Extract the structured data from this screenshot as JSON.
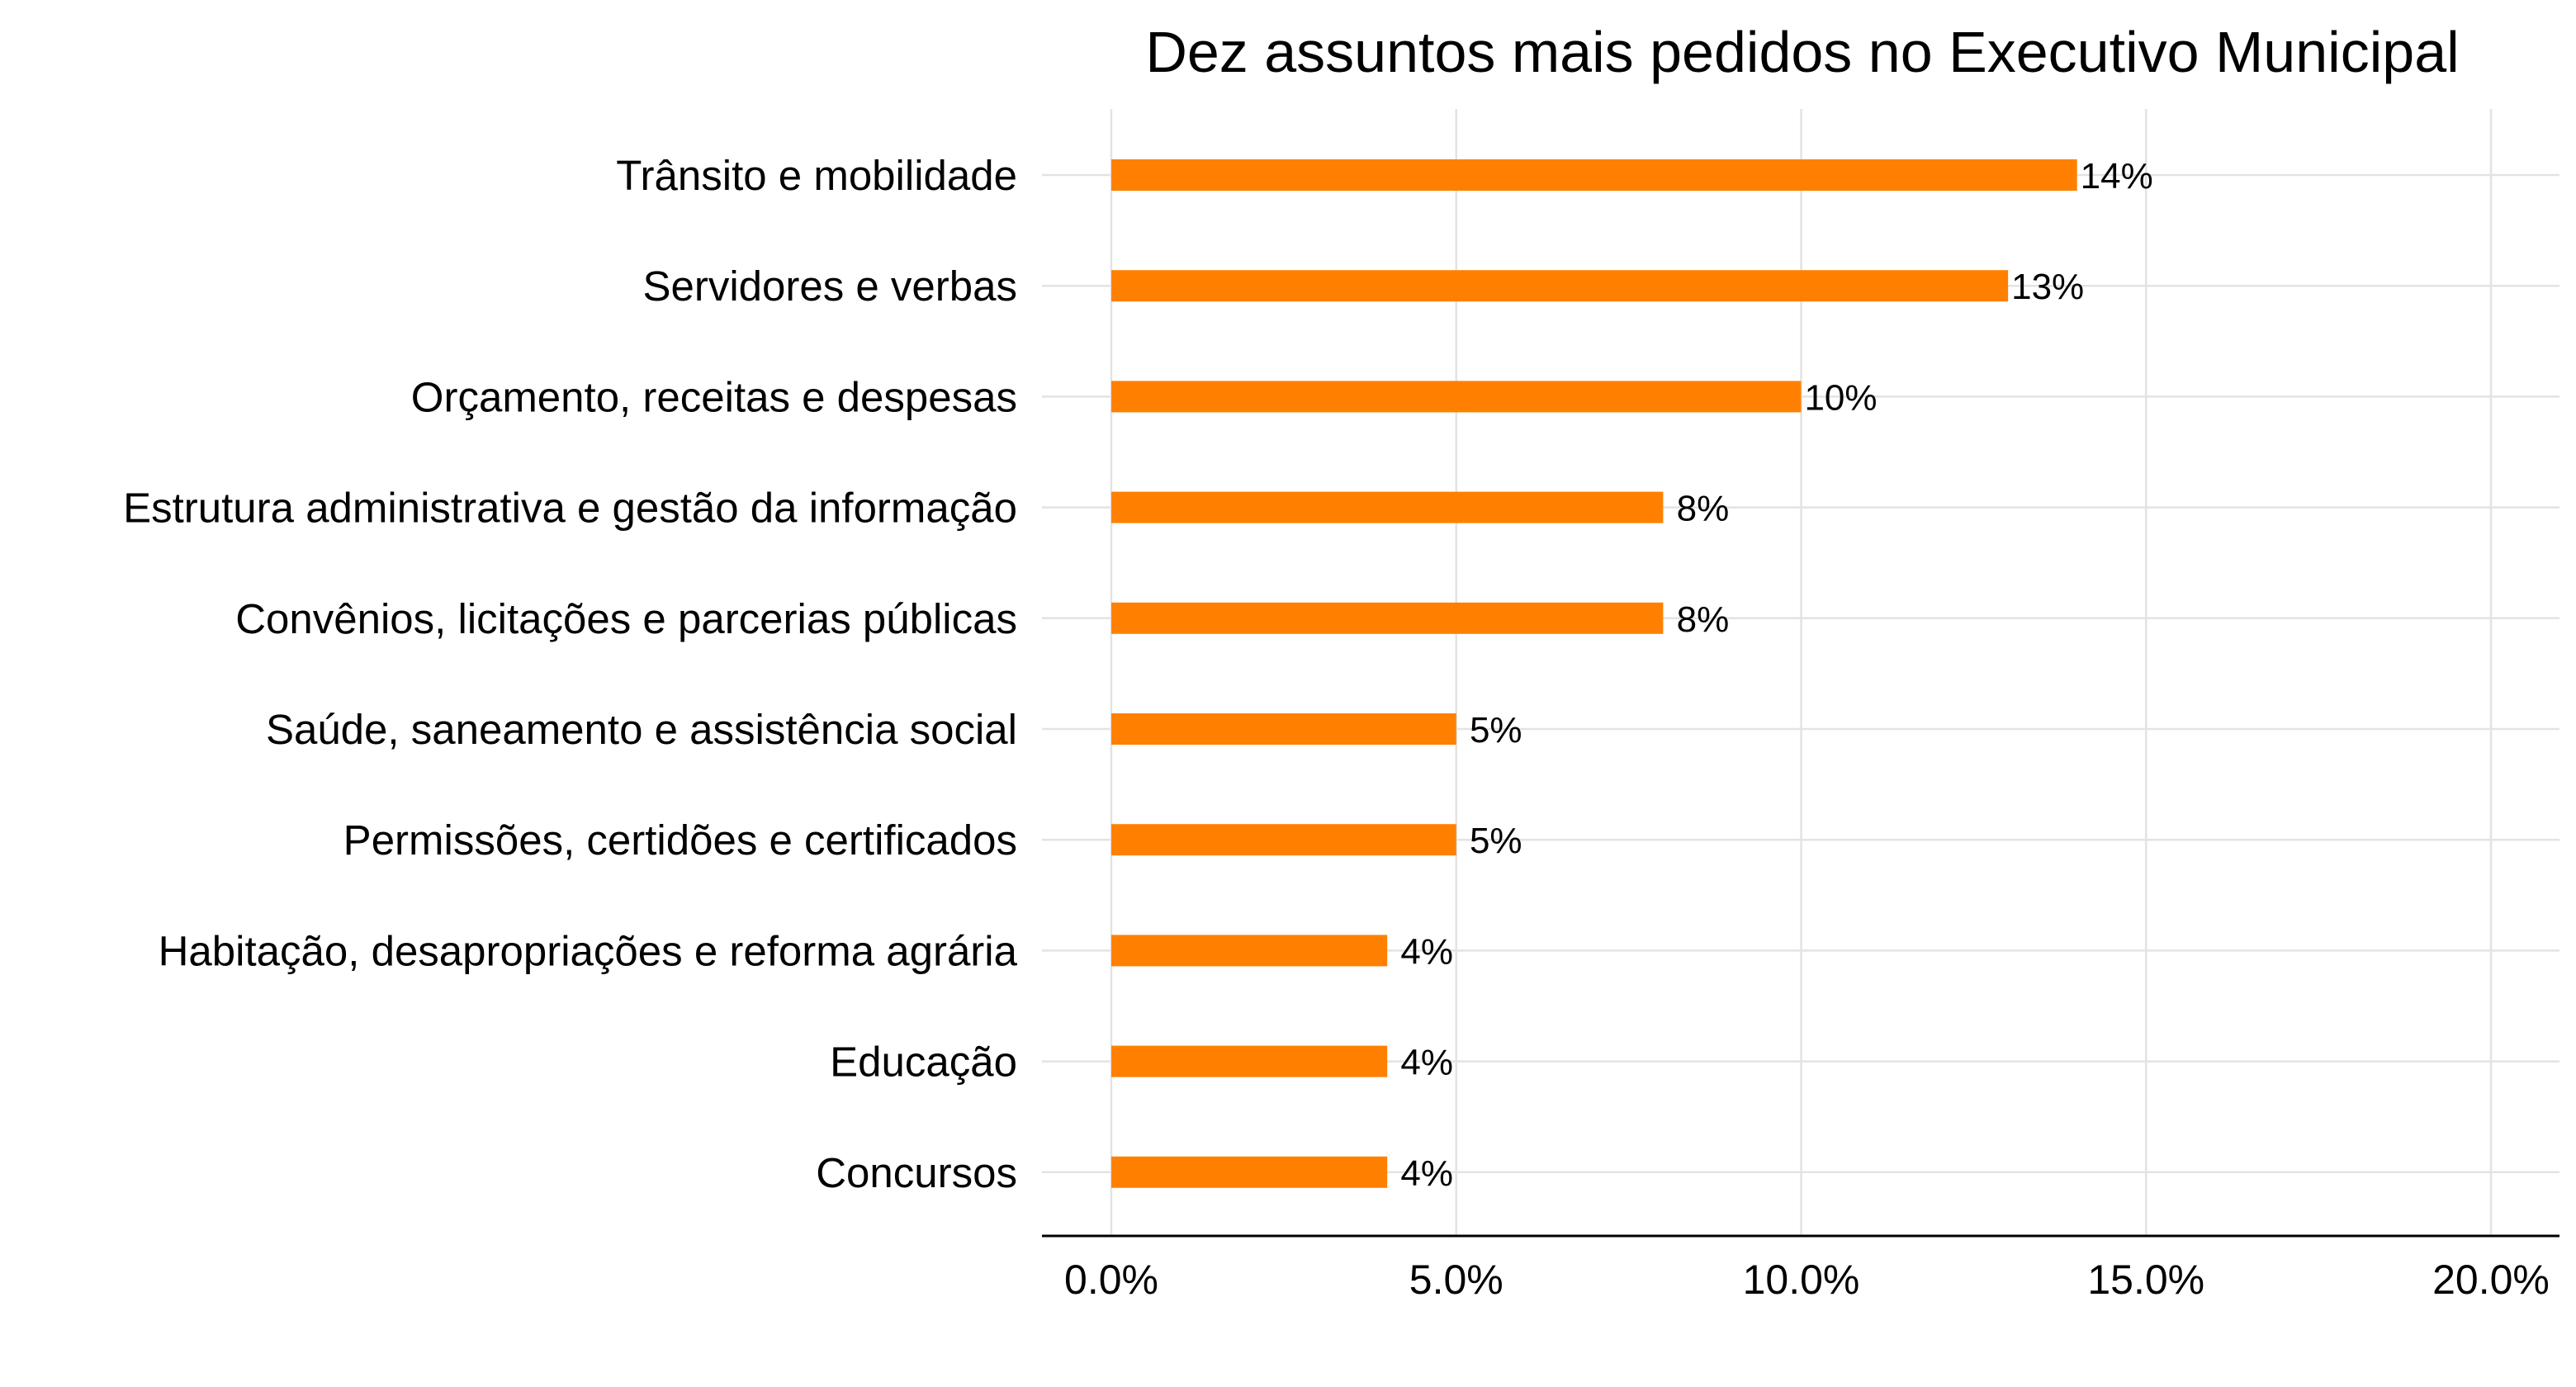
{
  "chart_data": {
    "type": "bar",
    "orientation": "horizontal",
    "title": "Dez assuntos mais pedidos no Executivo Municipal",
    "xlabel": "",
    "ylabel": "",
    "categories": [
      "Trânsito e mobilidade",
      "Servidores e verbas",
      "Orçamento, receitas e despesas",
      "Estrutura administrativa e gestão da informação",
      "Convênios, licitações e parcerias públicas",
      "Saúde, saneamento e assistência social",
      "Permissões, certidões e certificados",
      "Habitação, desapropriações e reforma agrária",
      "Educação",
      "Concursos"
    ],
    "values": [
      14,
      13,
      10,
      8,
      8,
      5,
      5,
      4,
      4,
      4
    ],
    "value_labels": [
      "14%",
      "13%",
      "10%",
      "8%",
      "8%",
      "5%",
      "5%",
      "4%",
      "4%",
      "4%"
    ],
    "xlim": [
      0,
      20
    ],
    "x_ticks": [
      0,
      5,
      10,
      15,
      20
    ],
    "x_tick_labels": [
      "0.0%",
      "5.0%",
      "10.0%",
      "15.0%",
      "20.0%"
    ],
    "grid": true,
    "legend": "none",
    "colors": {
      "bar": "#ff8000",
      "grid": "#e3e3e3",
      "axis": "#000000",
      "text": "#000000"
    }
  }
}
